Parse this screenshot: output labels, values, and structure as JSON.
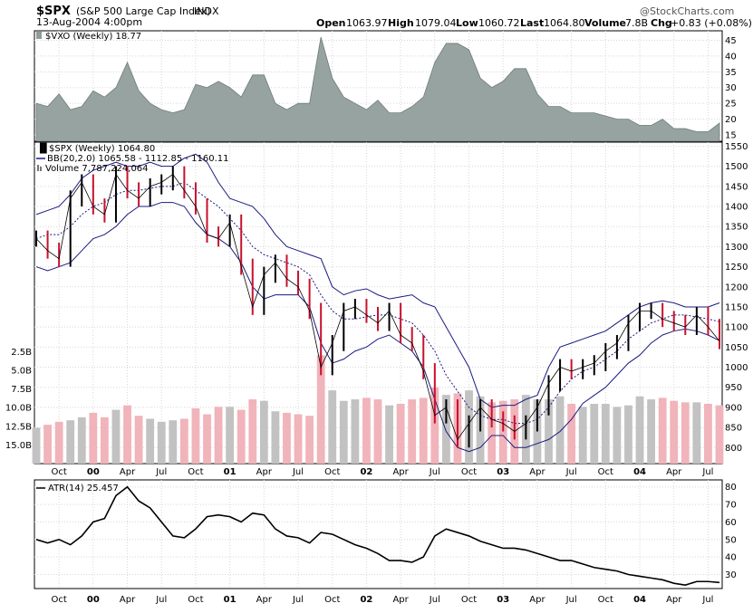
{
  "header": {
    "symbol": "$SPX",
    "name": "(S&P 500 Large Cap Index)",
    "exchange": "INDX",
    "date": "13-Aug-2004 4:00pm",
    "open_label": "Open",
    "open": "1063.97",
    "high_label": "High",
    "high": "1079.04",
    "low_label": "Low",
    "low": "1060.72",
    "last_label": "Last",
    "last": "1064.80",
    "volume_label": "Volume",
    "volume": "7.8B",
    "chg_label": "Chg",
    "chg": "+0.83 (+0.08%)",
    "logo": "@StockCharts.com"
  },
  "vxo_panel": {
    "legend": "$VXO (Weekly) 18.77",
    "yticks": [
      "45",
      "40",
      "35",
      "30",
      "25",
      "20",
      "15"
    ]
  },
  "price_panel": {
    "legend_price": "$SPX (Weekly) 1064.80",
    "legend_bb": "BB(20,2.0) 1065.58 - 1112.85 - 1160.11",
    "legend_volume": "Volume 7,787,224,064",
    "yticks": [
      "1550",
      "1500",
      "1450",
      "1400",
      "1350",
      "1300",
      "1250",
      "1200",
      "1150",
      "1100",
      "1050",
      "1000",
      "950",
      "900",
      "850",
      "800"
    ],
    "volume_ticks": [
      "15.0B",
      "12.5B",
      "10.0B",
      "7.5B",
      "5.0B",
      "2.5B"
    ]
  },
  "atr_panel": {
    "legend": "ATR(14) 25.457",
    "yticks": [
      "80",
      "70",
      "60",
      "50",
      "40",
      "30"
    ]
  },
  "x_axis": {
    "labels": [
      {
        "t": "Oct",
        "bold": false
      },
      {
        "t": "00",
        "bold": true
      },
      {
        "t": "Apr",
        "bold": false
      },
      {
        "t": "Jul",
        "bold": false
      },
      {
        "t": "Oct",
        "bold": false
      },
      {
        "t": "01",
        "bold": true
      },
      {
        "t": "Apr",
        "bold": false
      },
      {
        "t": "Jul",
        "bold": false
      },
      {
        "t": "Oct",
        "bold": false
      },
      {
        "t": "02",
        "bold": true
      },
      {
        "t": "Apr",
        "bold": false
      },
      {
        "t": "Jul",
        "bold": false
      },
      {
        "t": "Oct",
        "bold": false
      },
      {
        "t": "03",
        "bold": true
      },
      {
        "t": "Apr",
        "bold": false
      },
      {
        "t": "Jul",
        "bold": false
      },
      {
        "t": "Oct",
        "bold": false
      },
      {
        "t": "04",
        "bold": true
      },
      {
        "t": "Apr",
        "bold": false
      },
      {
        "t": "Jul",
        "bold": false
      }
    ]
  },
  "chart_data": [
    {
      "type": "area",
      "name": "$VXO (Weekly)",
      "x": [
        "1999-08",
        "1999-09",
        "1999-10",
        "1999-11",
        "1999-12",
        "2000-01",
        "2000-02",
        "2000-03",
        "2000-04",
        "2000-05",
        "2000-06",
        "2000-07",
        "2000-08",
        "2000-09",
        "2000-10",
        "2000-11",
        "2000-12",
        "2001-01",
        "2001-02",
        "2001-03",
        "2001-04",
        "2001-05",
        "2001-06",
        "2001-07",
        "2001-08",
        "2001-09",
        "2001-10",
        "2001-11",
        "2001-12",
        "2002-01",
        "2002-02",
        "2002-03",
        "2002-04",
        "2002-05",
        "2002-06",
        "2002-07",
        "2002-08",
        "2002-09",
        "2002-10",
        "2002-11",
        "2002-12",
        "2003-01",
        "2003-02",
        "2003-03",
        "2003-04",
        "2003-05",
        "2003-06",
        "2003-07",
        "2003-08",
        "2003-09",
        "2003-10",
        "2003-11",
        "2003-12",
        "2004-01",
        "2004-02",
        "2004-03",
        "2004-04",
        "2004-05",
        "2004-06",
        "2004-07",
        "2004-08"
      ],
      "values": [
        25,
        24,
        28,
        23,
        24,
        29,
        27,
        30,
        38,
        29,
        25,
        23,
        22,
        23,
        31,
        30,
        32,
        30,
        27,
        34,
        34,
        25,
        23,
        25,
        25,
        46,
        33,
        27,
        25,
        23,
        26,
        22,
        22,
        24,
        27,
        38,
        44,
        44,
        42,
        33,
        30,
        32,
        36,
        36,
        28,
        24,
        24,
        22,
        22,
        22,
        21,
        20,
        20,
        18,
        18,
        20,
        17,
        17,
        16,
        16,
        18.77
      ],
      "yticks": [
        15,
        20,
        25,
        30,
        35,
        40,
        45
      ],
      "ylim": [
        13,
        48
      ]
    },
    {
      "type": "line",
      "name": "$SPX (Weekly)",
      "x": [
        "1999-08",
        "1999-09",
        "1999-10",
        "1999-11",
        "1999-12",
        "2000-01",
        "2000-02",
        "2000-03",
        "2000-04",
        "2000-05",
        "2000-06",
        "2000-07",
        "2000-08",
        "2000-09",
        "2000-10",
        "2000-11",
        "2000-12",
        "2001-01",
        "2001-02",
        "2001-03",
        "2001-04",
        "2001-05",
        "2001-06",
        "2001-07",
        "2001-08",
        "2001-09",
        "2001-10",
        "2001-11",
        "2001-12",
        "2002-01",
        "2002-02",
        "2002-03",
        "2002-04",
        "2002-05",
        "2002-06",
        "2002-07",
        "2002-08",
        "2002-09",
        "2002-10",
        "2002-11",
        "2002-12",
        "2003-01",
        "2003-02",
        "2003-03",
        "2003-04",
        "2003-05",
        "2003-06",
        "2003-07",
        "2003-08",
        "2003-09",
        "2003-10",
        "2003-11",
        "2003-12",
        "2004-01",
        "2004-02",
        "2004-03",
        "2004-04",
        "2004-05",
        "2004-06",
        "2004-07",
        "2004-08"
      ],
      "series": [
        {
          "name": "$SPX (Weekly)",
          "values": [
            1320,
            1290,
            1270,
            1420,
            1460,
            1400,
            1380,
            1480,
            1440,
            1420,
            1450,
            1460,
            1480,
            1440,
            1400,
            1330,
            1320,
            1360,
            1250,
            1150,
            1230,
            1260,
            1220,
            1200,
            1140,
            1000,
            1060,
            1140,
            1150,
            1130,
            1110,
            1140,
            1080,
            1060,
            990,
            880,
            900,
            820,
            860,
            900,
            870,
            860,
            840,
            860,
            900,
            960,
            1000,
            990,
            1000,
            1010,
            1040,
            1060,
            1110,
            1140,
            1140,
            1120,
            1110,
            1100,
            1130,
            1100,
            1065
          ]
        },
        {
          "name": "BB(20,2.0) upper",
          "values": [
            1380,
            1390,
            1400,
            1430,
            1470,
            1490,
            1500,
            1510,
            1500,
            1500,
            1510,
            1500,
            1500,
            1520,
            1530,
            1510,
            1460,
            1420,
            1410,
            1400,
            1370,
            1330,
            1300,
            1290,
            1280,
            1270,
            1200,
            1180,
            1190,
            1195,
            1180,
            1170,
            1175,
            1180,
            1160,
            1150,
            1100,
            1050,
            1000,
            920,
            900,
            905,
            905,
            920,
            930,
            1000,
            1050,
            1060,
            1070,
            1080,
            1090,
            1110,
            1130,
            1150,
            1160,
            1165,
            1160,
            1150,
            1150,
            1150,
            1160
          ]
        },
        {
          "name": "BB(20,2.0) middle",
          "values": [
            1320,
            1330,
            1330,
            1350,
            1380,
            1400,
            1410,
            1430,
            1440,
            1440,
            1445,
            1450,
            1450,
            1460,
            1440,
            1420,
            1400,
            1370,
            1340,
            1300,
            1280,
            1270,
            1260,
            1250,
            1230,
            1180,
            1140,
            1120,
            1120,
            1125,
            1130,
            1130,
            1120,
            1110,
            1080,
            1040,
            980,
            940,
            900,
            880,
            870,
            870,
            860,
            860,
            870,
            900,
            940,
            970,
            990,
            1000,
            1020,
            1040,
            1070,
            1090,
            1110,
            1120,
            1130,
            1130,
            1125,
            1120,
            1113
          ]
        },
        {
          "name": "BB(20,2.0) lower",
          "values": [
            1250,
            1240,
            1250,
            1260,
            1290,
            1320,
            1330,
            1350,
            1380,
            1400,
            1400,
            1410,
            1410,
            1400,
            1360,
            1330,
            1320,
            1300,
            1260,
            1200,
            1170,
            1180,
            1180,
            1180,
            1150,
            1060,
            1010,
            1020,
            1040,
            1050,
            1070,
            1080,
            1060,
            1040,
            1000,
            920,
            840,
            800,
            790,
            800,
            830,
            830,
            800,
            800,
            810,
            820,
            840,
            870,
            910,
            930,
            950,
            980,
            1010,
            1030,
            1060,
            1080,
            1090,
            1095,
            1090,
            1080,
            1066
          ]
        }
      ],
      "ylim": [
        760,
        1560
      ]
    },
    {
      "type": "bar",
      "name": "Volume",
      "x": [
        "1999-08",
        "1999-09",
        "1999-10",
        "1999-11",
        "1999-12",
        "2000-01",
        "2000-02",
        "2000-03",
        "2000-04",
        "2000-05",
        "2000-06",
        "2000-07",
        "2000-08",
        "2000-09",
        "2000-10",
        "2000-11",
        "2000-12",
        "2001-01",
        "2001-02",
        "2001-03",
        "2001-04",
        "2001-05",
        "2001-06",
        "2001-07",
        "2001-08",
        "2001-09",
        "2001-10",
        "2001-11",
        "2001-12",
        "2002-01",
        "2002-02",
        "2002-03",
        "2002-04",
        "2002-05",
        "2002-06",
        "2002-07",
        "2002-08",
        "2002-09",
        "2002-10",
        "2002-11",
        "2002-12",
        "2003-01",
        "2003-02",
        "2003-03",
        "2003-04",
        "2003-05",
        "2003-06",
        "2003-07",
        "2003-08",
        "2003-09",
        "2003-10",
        "2003-11",
        "2003-12",
        "2004-01",
        "2004-02",
        "2004-03",
        "2004-04",
        "2004-05",
        "2004-06",
        "2004-07",
        "2004-08"
      ],
      "values": [
        4.8,
        5.2,
        5.6,
        5.8,
        6.2,
        6.8,
        6.2,
        7.2,
        7.8,
        6.4,
        6.0,
        5.6,
        5.8,
        6.0,
        7.4,
        6.6,
        7.6,
        7.6,
        7.2,
        8.6,
        8.4,
        7.0,
        6.8,
        6.6,
        6.4,
        14.5,
        9.8,
        8.4,
        8.6,
        8.8,
        8.6,
        7.8,
        8.0,
        8.6,
        8.8,
        10.2,
        9.2,
        9.4,
        9.8,
        9.0,
        8.2,
        8.4,
        8.6,
        9.2,
        8.6,
        8.6,
        9.0,
        8.0,
        7.6,
        8.0,
        8.0,
        7.6,
        7.8,
        9.0,
        8.6,
        8.8,
        8.4,
        8.2,
        8.2,
        8.0,
        7.8
      ],
      "yticks": [
        "2.5B",
        "5.0B",
        "7.5B",
        "10.0B",
        "12.5B",
        "15.0B"
      ],
      "ylim": [
        0,
        16
      ]
    },
    {
      "type": "line",
      "name": "ATR(14)",
      "x": [
        "1999-08",
        "1999-09",
        "1999-10",
        "1999-11",
        "1999-12",
        "2000-01",
        "2000-02",
        "2000-03",
        "2000-04",
        "2000-05",
        "2000-06",
        "2000-07",
        "2000-08",
        "2000-09",
        "2000-10",
        "2000-11",
        "2000-12",
        "2001-01",
        "2001-02",
        "2001-03",
        "2001-04",
        "2001-05",
        "2001-06",
        "2001-07",
        "2001-08",
        "2001-09",
        "2001-10",
        "2001-11",
        "2001-12",
        "2002-01",
        "2002-02",
        "2002-03",
        "2002-04",
        "2002-05",
        "2002-06",
        "2002-07",
        "2002-08",
        "2002-09",
        "2002-10",
        "2002-11",
        "2002-12",
        "2003-01",
        "2003-02",
        "2003-03",
        "2003-04",
        "2003-05",
        "2003-06",
        "2003-07",
        "2003-08",
        "2003-09",
        "2003-10",
        "2003-11",
        "2003-12",
        "2004-01",
        "2004-02",
        "2004-03",
        "2004-04",
        "2004-05",
        "2004-06",
        "2004-07",
        "2004-08"
      ],
      "values": [
        50,
        48,
        50,
        47,
        52,
        60,
        62,
        75,
        80,
        72,
        68,
        60,
        52,
        51,
        56,
        63,
        64,
        63,
        60,
        65,
        64,
        56,
        52,
        51,
        48,
        54,
        53,
        50,
        47,
        45,
        42,
        38,
        38,
        37,
        40,
        52,
        56,
        54,
        52,
        49,
        47,
        45,
        45,
        44,
        42,
        40,
        38,
        38,
        36,
        34,
        33,
        32,
        30,
        29,
        28,
        27,
        25,
        24,
        26,
        26,
        25.457
      ],
      "yticks": [
        30,
        40,
        50,
        60,
        70,
        80
      ],
      "ylim": [
        22,
        84
      ]
    }
  ]
}
